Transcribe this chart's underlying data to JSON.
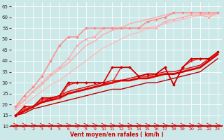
{
  "xlabel": "Vent moyen/en rafales ( km/h )",
  "bg_color": "#cce8e8",
  "grid_color": "#ffffff",
  "xlim": [
    -0.5,
    23.5
  ],
  "ylim": [
    10,
    67
  ],
  "yticks": [
    10,
    15,
    20,
    25,
    30,
    35,
    40,
    45,
    50,
    55,
    60,
    65
  ],
  "xticks": [
    0,
    1,
    2,
    3,
    4,
    5,
    6,
    7,
    8,
    9,
    10,
    11,
    12,
    13,
    14,
    15,
    16,
    17,
    18,
    19,
    20,
    21,
    22,
    23
  ],
  "lines": [
    {
      "x": [
        0,
        1,
        2,
        3,
        4,
        5,
        6,
        7,
        8,
        9,
        10,
        11,
        12,
        13,
        14,
        15,
        16,
        17,
        18,
        19,
        20,
        21,
        22,
        23
      ],
      "y": [
        18,
        22,
        26,
        30,
        34,
        37,
        41,
        47,
        50,
        51,
        55,
        55,
        55,
        55,
        55,
        55,
        55,
        58,
        59,
        60,
        61,
        61,
        60,
        62
      ],
      "color": "#ffaaaa",
      "marker": "o",
      "markersize": 1.8,
      "linewidth": 1.0,
      "zorder": 3
    },
    {
      "x": [
        0,
        1,
        2,
        3,
        4,
        5,
        6,
        7,
        8,
        9,
        10,
        11,
        12,
        13,
        14,
        15,
        16,
        17,
        18,
        19,
        20,
        21,
        22,
        23
      ],
      "y": [
        18,
        20,
        23,
        26,
        29,
        31,
        34,
        37,
        40,
        43,
        46,
        48,
        50,
        52,
        53,
        55,
        56,
        57,
        58,
        59,
        60,
        61,
        62,
        62
      ],
      "color": "#ffbbbb",
      "marker": null,
      "markersize": 0,
      "linewidth": 1.0,
      "zorder": 2
    },
    {
      "x": [
        0,
        1,
        2,
        3,
        4,
        5,
        6,
        7,
        8,
        9,
        10,
        11,
        12,
        13,
        14,
        15,
        16,
        17,
        18,
        19,
        20,
        21,
        22,
        23
      ],
      "y": [
        19,
        22,
        26,
        29,
        33,
        36,
        39,
        43,
        47,
        49,
        52,
        54,
        55,
        57,
        58,
        59,
        60,
        61,
        62,
        62,
        62,
        62,
        61,
        62
      ],
      "color": "#ffaaaa",
      "marker": null,
      "markersize": 0,
      "linewidth": 1.0,
      "zorder": 2
    },
    {
      "x": [
        0,
        1,
        2,
        3,
        4,
        5,
        6,
        7,
        8,
        9,
        10,
        11,
        12,
        13,
        14,
        15,
        16,
        17,
        18,
        19,
        20,
        21,
        22,
        23
      ],
      "y": [
        19,
        24,
        28,
        33,
        40,
        47,
        51,
        51,
        55,
        55,
        55,
        55,
        55,
        55,
        55,
        58,
        59,
        60,
        62,
        62,
        62,
        62,
        62,
        62
      ],
      "color": "#ff8888",
      "marker": "D",
      "markersize": 1.8,
      "linewidth": 1.0,
      "zorder": 3
    },
    {
      "x": [
        0,
        1,
        2,
        3,
        4,
        5,
        6,
        7,
        8,
        9,
        10,
        11,
        12,
        13,
        14,
        15,
        16,
        17,
        18,
        19,
        20,
        21,
        22,
        23
      ],
      "y": [
        15,
        19,
        19,
        23,
        23,
        24,
        30,
        30,
        30,
        30,
        30,
        37,
        37,
        37,
        33,
        34,
        34,
        37,
        29,
        37,
        41,
        41,
        41,
        44
      ],
      "color": "#cc0000",
      "marker": "D",
      "markersize": 1.8,
      "linewidth": 1.2,
      "zorder": 6
    },
    {
      "x": [
        0,
        1,
        2,
        3,
        4,
        5,
        6,
        7,
        8,
        9,
        10,
        11,
        12,
        13,
        14,
        15,
        16,
        17,
        18,
        19,
        20,
        21,
        22,
        23
      ],
      "y": [
        15,
        17,
        19,
        21,
        22,
        23,
        25,
        26,
        27,
        28,
        29,
        30,
        31,
        31,
        32,
        32,
        33,
        34,
        34,
        35,
        36,
        37,
        40,
        43
      ],
      "color": "#dd0000",
      "marker": null,
      "markersize": 0,
      "linewidth": 2.0,
      "zorder": 5
    },
    {
      "x": [
        0,
        1,
        2,
        3,
        4,
        5,
        6,
        7,
        8,
        9,
        10,
        11,
        12,
        13,
        14,
        15,
        16,
        17,
        18,
        19,
        20,
        21,
        22,
        23
      ],
      "y": [
        15,
        16,
        18,
        19,
        20,
        21,
        22,
        23,
        24,
        25,
        26,
        27,
        27,
        28,
        29,
        30,
        30,
        31,
        32,
        33,
        34,
        35,
        38,
        41
      ],
      "color": "#bb0000",
      "marker": null,
      "markersize": 0,
      "linewidth": 1.0,
      "zorder": 4
    },
    {
      "x": [
        0,
        1,
        2,
        3,
        4,
        5,
        6,
        7,
        8,
        9,
        10,
        11,
        12,
        13,
        14,
        15,
        16,
        17,
        18,
        19,
        20,
        21,
        22,
        23
      ],
      "y": [
        15,
        18,
        19,
        22,
        23,
        23,
        29,
        30,
        30,
        30,
        30,
        30,
        37,
        37,
        33,
        33,
        34,
        37,
        29,
        37,
        40,
        41,
        41,
        44
      ],
      "color": "#ee2222",
      "marker": "D",
      "markersize": 1.5,
      "linewidth": 1.0,
      "zorder": 5
    },
    {
      "x": [
        0,
        1,
        2,
        3,
        4,
        5,
        6,
        7,
        8,
        9,
        10,
        11,
        12,
        13,
        14,
        15,
        16,
        17,
        18,
        19,
        20,
        21,
        22,
        23
      ],
      "y": [
        15,
        17,
        19,
        21,
        23,
        24,
        26,
        27,
        28,
        29,
        30,
        31,
        31,
        32,
        33,
        33,
        34,
        35,
        35,
        36,
        37,
        38,
        41,
        44
      ],
      "color": "#cc1111",
      "marker": null,
      "markersize": 0,
      "linewidth": 1.0,
      "zorder": 4
    }
  ]
}
